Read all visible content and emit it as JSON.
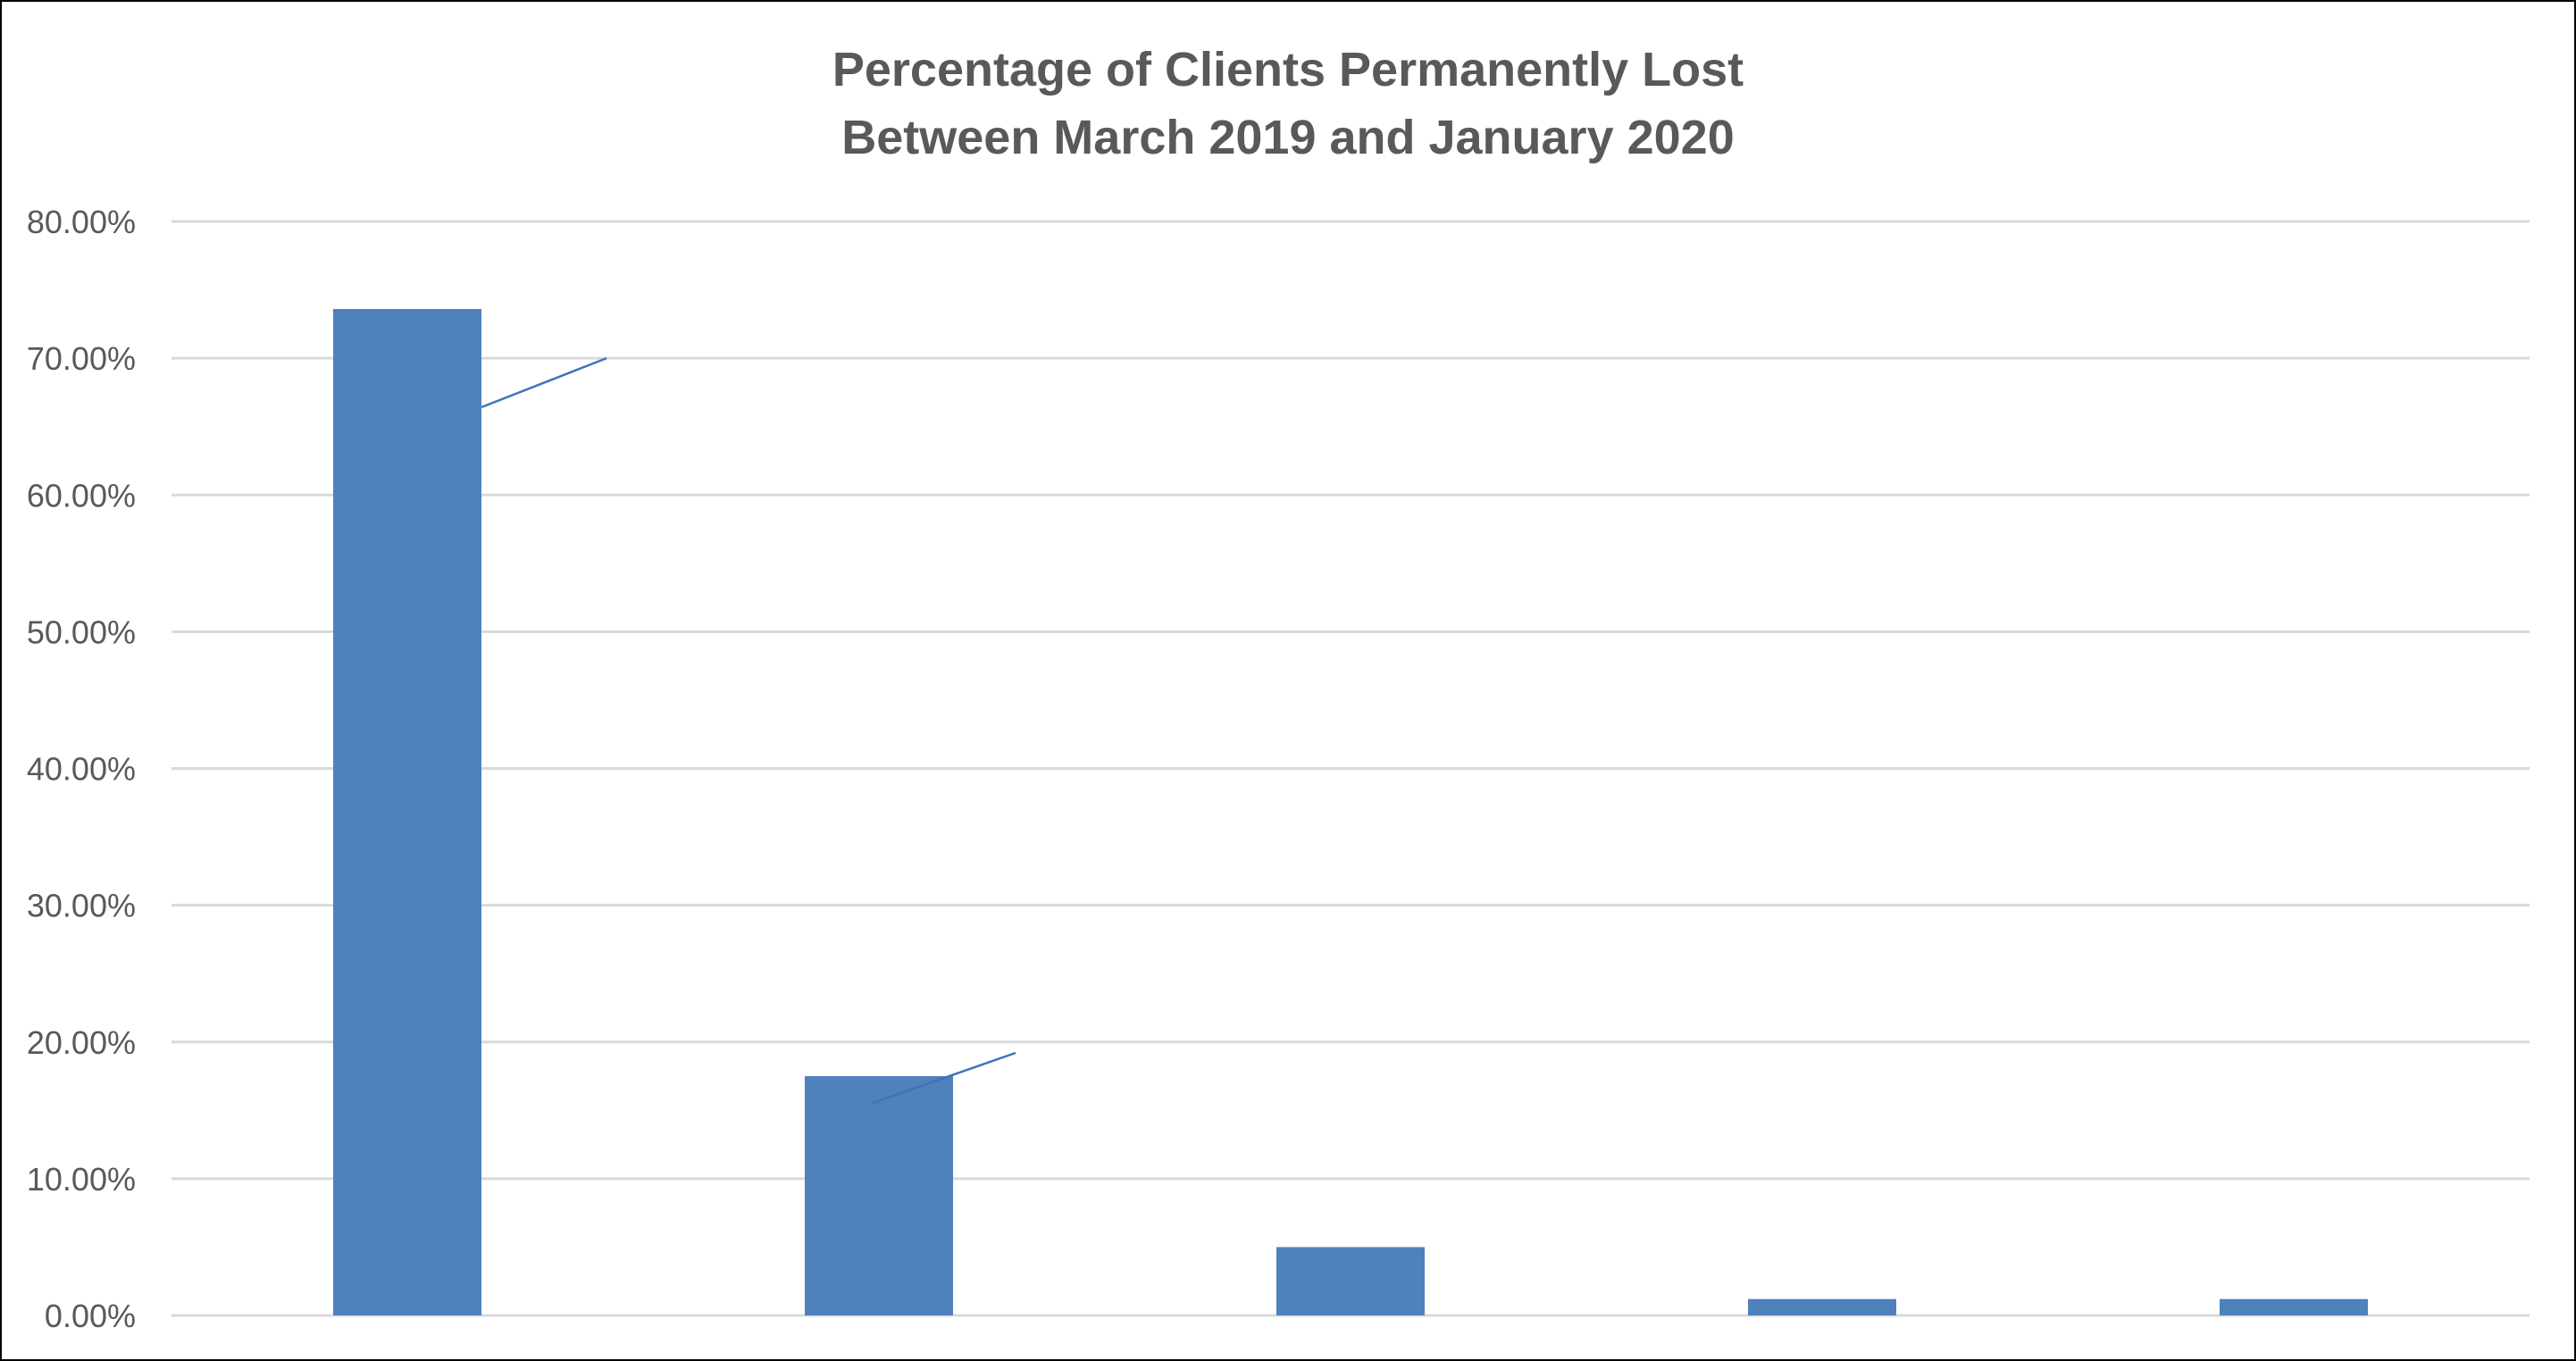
{
  "chart_data": {
    "type": "bar",
    "title": "Percentage of Clients Permanently Lost",
    "subtitle": "Between March 2019 and January 2020",
    "xlabel": "",
    "ylabel": "",
    "ylim": [
      0,
      0.8
    ],
    "y_ticks": [
      0,
      0.1,
      0.2,
      0.3,
      0.4,
      0.5,
      0.6,
      0.7,
      0.8
    ],
    "y_tick_labels": [
      "0.00%",
      "10.00%",
      "20.00%",
      "30.00%",
      "40.00%",
      "50.00%",
      "60.00%",
      "70.00%",
      "80.00%"
    ],
    "categories": [
      "",
      "",
      "",
      "",
      ""
    ],
    "values": [
      0.736,
      0.175,
      0.05,
      0.012,
      0.012
    ],
    "grid": true,
    "legend": "none",
    "bar_color": "#4F81BD",
    "grid_color": "#D9D9D9",
    "text_color": "#595959",
    "leader_lines": [
      {
        "bar": 0,
        "to_value": 0.7
      },
      {
        "bar": 1,
        "to_value": 0.192
      }
    ]
  }
}
